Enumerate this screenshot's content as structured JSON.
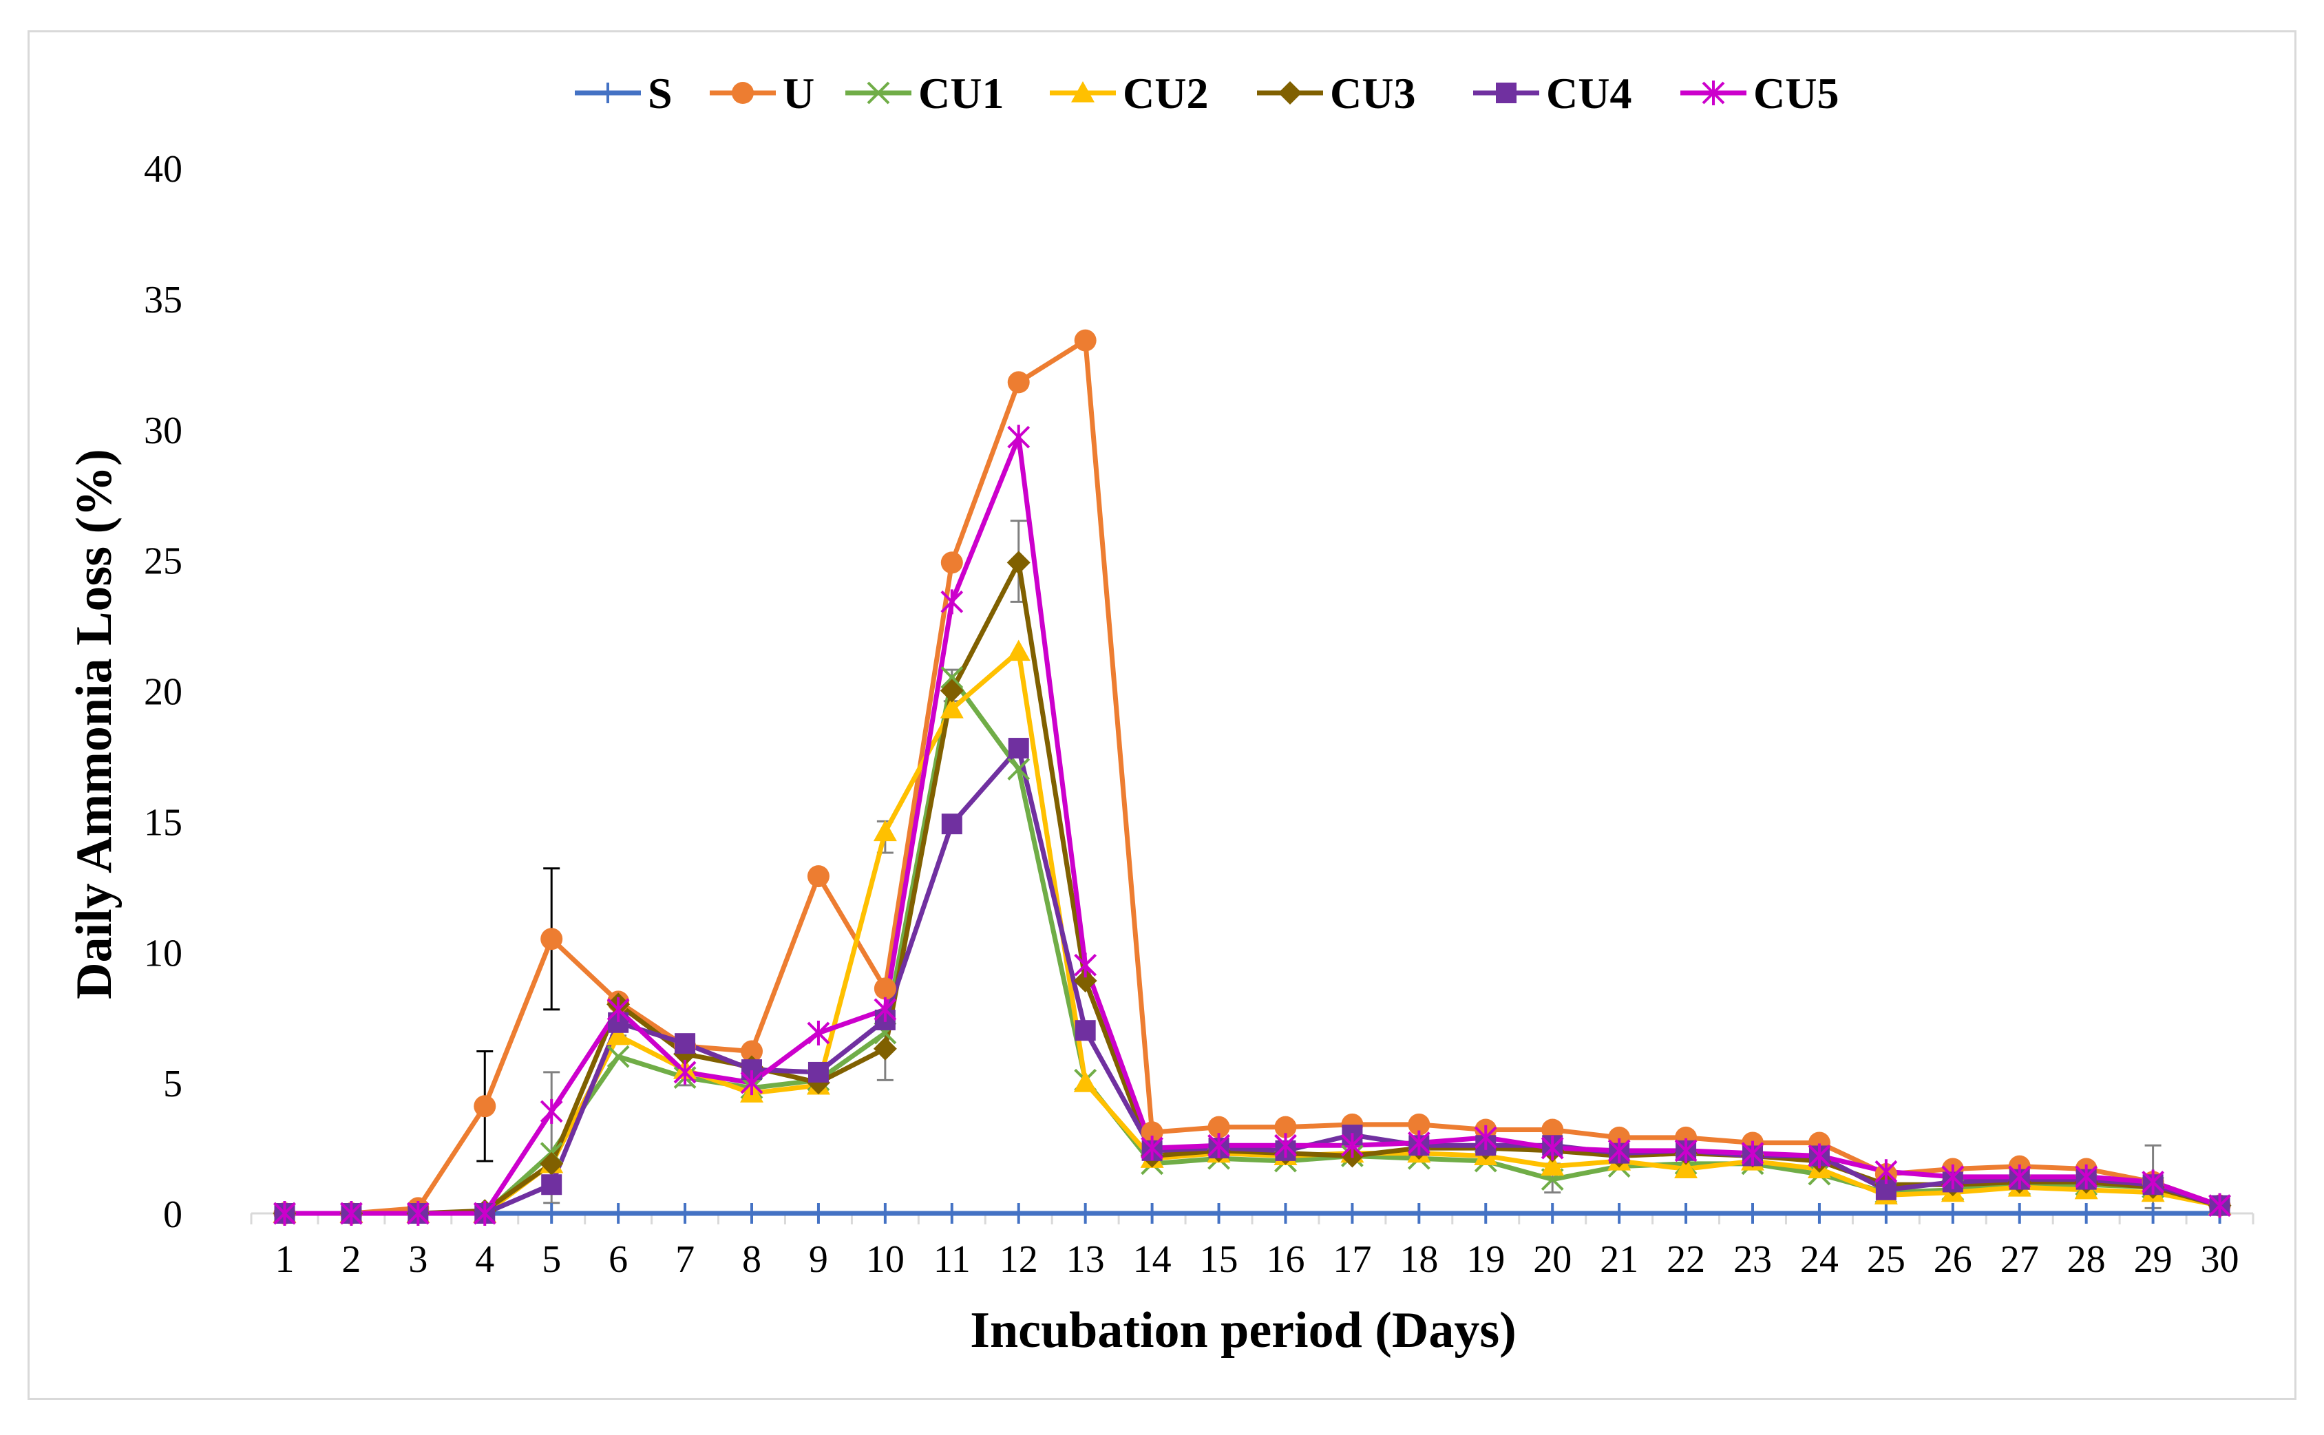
{
  "chart_data": {
    "type": "line",
    "title": "",
    "xlabel": "Incubation period (Days)",
    "ylabel": "Daily Ammonia Loss (%)",
    "ylim": [
      0,
      40
    ],
    "yticks": [
      0,
      5,
      10,
      15,
      20,
      25,
      30,
      35,
      40
    ],
    "categories": [
      "1",
      "2",
      "3",
      "4",
      "5",
      "6",
      "7",
      "8",
      "9",
      "10",
      "11",
      "12",
      "13",
      "14",
      "15",
      "16",
      "17",
      "18",
      "19",
      "20",
      "21",
      "22",
      "23",
      "24",
      "25",
      "26",
      "27",
      "28",
      "29",
      "30"
    ],
    "grid": false,
    "legend_position": "top-center",
    "series": [
      {
        "name": "S",
        "color": "#4472C4",
        "marker": "plus",
        "values": [
          0,
          0,
          0,
          0,
          0,
          0,
          0,
          0,
          0,
          0,
          0,
          0,
          0,
          0,
          0,
          0,
          0,
          0,
          0,
          0,
          0,
          0,
          0,
          0,
          0,
          0,
          0,
          0,
          0,
          0
        ]
      },
      {
        "name": "U",
        "color": "#ED7D31",
        "marker": "circle",
        "values": [
          0,
          0,
          0.2,
          4.1,
          10.5,
          8.1,
          6.4,
          6.2,
          12.9,
          8.6,
          24.9,
          31.8,
          33.4,
          3.1,
          3.3,
          3.3,
          3.4,
          3.4,
          3.2,
          3.2,
          2.9,
          2.9,
          2.7,
          2.7,
          1.5,
          1.7,
          1.8,
          1.7,
          1.2,
          0.3
        ]
      },
      {
        "name": "CU1",
        "color": "#70AD47",
        "marker": "x",
        "values": [
          0,
          0,
          0,
          0,
          2.3,
          6.0,
          5.2,
          4.8,
          5.1,
          6.9,
          20.5,
          17.0,
          5.1,
          1.9,
          2.1,
          2.0,
          2.2,
          2.1,
          2.0,
          1.3,
          1.8,
          1.9,
          1.9,
          1.5,
          0.8,
          0.9,
          1.1,
          1.1,
          1.0,
          0.3
        ]
      },
      {
        "name": "CU2",
        "color": "#FFC000",
        "marker": "triangle",
        "values": [
          0,
          0,
          0,
          0,
          1.9,
          6.8,
          5.5,
          4.6,
          4.9,
          14.6,
          19.3,
          21.5,
          5.0,
          2.1,
          2.3,
          2.2,
          2.3,
          2.3,
          2.2,
          1.8,
          2.0,
          1.7,
          2.0,
          1.7,
          0.7,
          0.8,
          1.0,
          0.9,
          0.8,
          0.3
        ]
      },
      {
        "name": "CU3",
        "color": "#806000",
        "marker": "diamond",
        "values": [
          0,
          0,
          0,
          0.1,
          1.9,
          8.0,
          6.1,
          5.6,
          5.0,
          6.3,
          20.0,
          24.9,
          8.9,
          2.2,
          2.4,
          2.3,
          2.2,
          2.5,
          2.5,
          2.4,
          2.2,
          2.3,
          2.2,
          2.0,
          1.1,
          1.1,
          1.2,
          1.2,
          1.0,
          0.3
        ]
      },
      {
        "name": "CU4",
        "color": "#7030A0",
        "marker": "square",
        "values": [
          0,
          0,
          0,
          0,
          1.1,
          7.3,
          6.5,
          5.5,
          5.4,
          7.4,
          14.9,
          17.8,
          7.0,
          2.4,
          2.5,
          2.4,
          3.0,
          2.6,
          2.6,
          2.6,
          2.3,
          2.4,
          2.2,
          2.2,
          0.9,
          1.2,
          1.3,
          1.3,
          1.1,
          0.3
        ]
      },
      {
        "name": "CU5",
        "color": "#CC00CC",
        "marker": "asterisk",
        "values": [
          0,
          0,
          0,
          0,
          3.9,
          7.8,
          5.4,
          5.0,
          6.9,
          7.8,
          23.4,
          29.7,
          9.5,
          2.5,
          2.6,
          2.6,
          2.6,
          2.7,
          2.9,
          2.5,
          2.4,
          2.4,
          2.3,
          2.2,
          1.6,
          1.4,
          1.4,
          1.4,
          1.2,
          0.3
        ]
      }
    ],
    "error_bars": [
      {
        "series": "U",
        "day": "4",
        "low": 2.0,
        "high": 6.2,
        "color": "#000000"
      },
      {
        "series": "U",
        "day": "5",
        "low": 7.8,
        "high": 13.2,
        "color": "#000000"
      },
      {
        "series": "CU5",
        "day": "5",
        "low": 0.4,
        "high": 5.4,
        "color": "#808080"
      },
      {
        "series": "U",
        "day": "6",
        "low": 6.8,
        "high": 8.3,
        "color": "#808080"
      },
      {
        "series": "CU1",
        "day": "7",
        "low": 4.9,
        "high": 6.3,
        "color": "#808080"
      },
      {
        "series": "CU2",
        "day": "10",
        "low": 13.8,
        "high": 15.0,
        "color": "#808080"
      },
      {
        "series": "CU1",
        "day": "10",
        "low": 5.1,
        "high": 8.5,
        "color": "#808080"
      },
      {
        "series": "CU1",
        "day": "11",
        "low": 19.6,
        "high": 20.8,
        "color": "#808080"
      },
      {
        "series": "CU3",
        "day": "12",
        "low": 23.4,
        "high": 26.5,
        "color": "#808080"
      },
      {
        "series": "CU1",
        "day": "20",
        "low": 0.8,
        "high": 1.9,
        "color": "#808080"
      },
      {
        "series": "CU5",
        "day": "29",
        "low": 0.2,
        "high": 2.6,
        "color": "#808080"
      }
    ]
  }
}
